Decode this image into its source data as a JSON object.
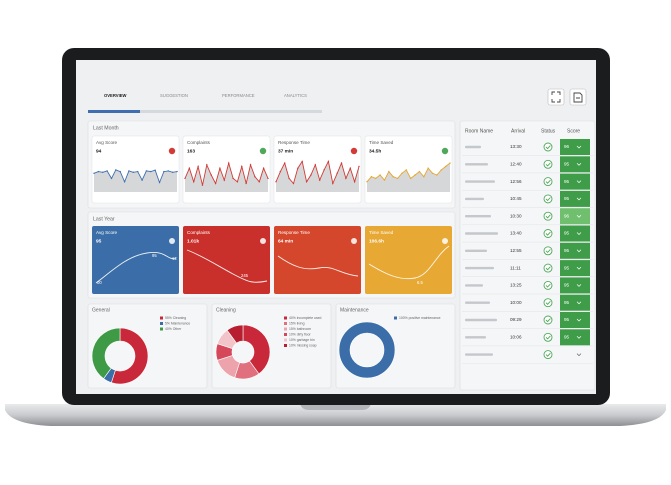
{
  "tabs": [
    "OVERVIEW",
    "SUGGESTION",
    "PERFORMANCE",
    "ANALYTICS"
  ],
  "last_month": {
    "title": "Last Month",
    "cards": [
      {
        "title": "Avg Score",
        "value": "94",
        "color": "#3f6fb0",
        "values": [
          55,
          60,
          58,
          62,
          40,
          65,
          60,
          30,
          62,
          58,
          60,
          35,
          62,
          60,
          64,
          28,
          60,
          62,
          58,
          60
        ]
      },
      {
        "title": "Complaints",
        "value": "163",
        "color": "#d23b36",
        "values": [
          40,
          70,
          30,
          75,
          20,
          80,
          50,
          25,
          70,
          35,
          85,
          40,
          30,
          75,
          25,
          80,
          45,
          30,
          70,
          40
        ]
      },
      {
        "title": "Response Time",
        "value": "37 min",
        "color": "#d23b36",
        "values": [
          30,
          60,
          85,
          40,
          25,
          70,
          90,
          30,
          50,
          80,
          35,
          65,
          90,
          25,
          55,
          85,
          40,
          70,
          30,
          75
        ]
      },
      {
        "title": "Time Saved",
        "value": "34.5h",
        "color": "#e7a52e",
        "values": [
          30,
          45,
          40,
          50,
          35,
          60,
          45,
          40,
          55,
          65,
          40,
          50,
          60,
          45,
          70,
          55,
          50,
          65,
          75,
          85
        ]
      }
    ]
  },
  "last_year": {
    "title": "Last Year",
    "cards": [
      {
        "title": "Avg Score",
        "value": "95",
        "color": "#3b6ea8",
        "labels": [
          "95",
          "12",
          "00"
        ]
      },
      {
        "title": "Complaints",
        "value": "1.01k",
        "color": "#c9302c",
        "labels": [
          "245"
        ]
      },
      {
        "title": "Response Time",
        "value": "64 min",
        "color": "#d4472c",
        "labels": []
      },
      {
        "title": "Time Saved",
        "value": "106.6h",
        "color": "#e7a834",
        "labels": [
          "6.5"
        ]
      }
    ]
  },
  "donuts": [
    {
      "title": "General",
      "slices": [
        {
          "label": "55% Cleaning",
          "value": 55,
          "color": "#c9283a"
        },
        {
          "label": "5% Maintenance",
          "value": 5,
          "color": "#3b6ea8"
        },
        {
          "label": "40% Other",
          "value": 40,
          "color": "#3e9a45"
        }
      ]
    },
    {
      "title": "Cleaning",
      "slices": [
        {
          "label": "40% incomplete used",
          "value": 40,
          "color": "#c9283a"
        },
        {
          "label": "15% living",
          "value": 15,
          "color": "#e0707e"
        },
        {
          "label": "15% bathroom",
          "value": 15,
          "color": "#eda3ac"
        },
        {
          "label": "10% dirty floor",
          "value": 10,
          "color": "#d4485a"
        },
        {
          "label": "10% garbage bin",
          "value": 10,
          "color": "#f2c4c9"
        },
        {
          "label": "10% missing soap",
          "value": 10,
          "color": "#b71f30"
        }
      ]
    },
    {
      "title": "Maintenance",
      "slices": [
        {
          "label": "100% positive maintenance",
          "value": 100,
          "color": "#3b6ea8"
        }
      ]
    }
  ],
  "table": {
    "headers": [
      "Room Name",
      "Arrival",
      "Status",
      "Score"
    ],
    "rows": [
      {
        "arrival": "13:30",
        "score": 96
      },
      {
        "arrival": "12:40",
        "score": 95
      },
      {
        "arrival": "12:56",
        "score": 95
      },
      {
        "arrival": "10:45",
        "score": 95
      },
      {
        "arrival": "10:30",
        "score": 96
      },
      {
        "arrival": "13:40",
        "score": 95
      },
      {
        "arrival": "12:55",
        "score": 95
      },
      {
        "arrival": "11:11",
        "score": 95
      },
      {
        "arrival": "13:25",
        "score": 95
      },
      {
        "arrival": "10:00",
        "score": 95
      },
      {
        "arrival": "09:29",
        "score": 95
      },
      {
        "arrival": "10:06",
        "score": 95
      },
      {
        "arrival": null,
        "score": null
      }
    ]
  }
}
